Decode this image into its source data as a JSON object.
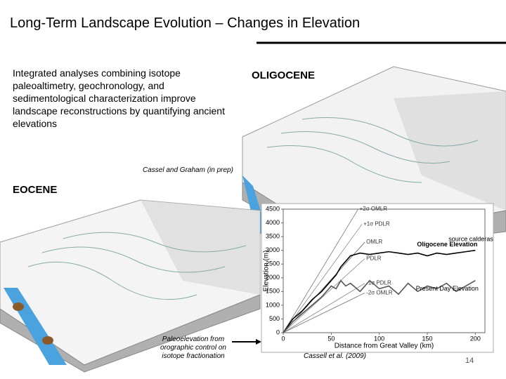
{
  "title": "Long-Term Landscape Evolution – Changes in Elevation",
  "body_text": "Integrated analyses combining isotope paleoaltimetry, geochronology, and sedimentological characterization improve landscape reconstructions by quantifying ancient elevations",
  "caption_top": "Cassel and Graham (in prep)",
  "oligocene_label": "OLIGOCENE",
  "eocene_label": "EOCENE",
  "arrow_note": "Paleoelevation from orographic control on isotope fractionation",
  "caption_chart": "Cassell et al. (2009)",
  "page_number": "14",
  "chart_data": {
    "type": "line",
    "x_label": "Distance from Great Valley (km)",
    "y_label": "Elevation (m)",
    "xlim": [
      0,
      210
    ],
    "ylim": [
      0,
      4500
    ],
    "xticks": [
      0,
      50,
      100,
      150,
      200
    ],
    "yticks": [
      0,
      500,
      1000,
      1500,
      2000,
      2500,
      3000,
      3500,
      4000,
      4500
    ],
    "annotation": "source calderas",
    "series": [
      {
        "name": "+2σ OMLR",
        "color": "#777777",
        "x": [
          0,
          78
        ],
        "values": [
          0,
          4500
        ]
      },
      {
        "name": "+1σ PDLR",
        "color": "#888888",
        "x": [
          0,
          82
        ],
        "values": [
          0,
          3950
        ]
      },
      {
        "name": "OMLR",
        "color": "#666666",
        "x": [
          0,
          85
        ],
        "values": [
          0,
          3300
        ]
      },
      {
        "name": "PDLR",
        "color": "#888888",
        "x": [
          0,
          85
        ],
        "values": [
          0,
          2700
        ]
      },
      {
        "name": "-1σ PDLR",
        "color": "#888888",
        "x": [
          0,
          85
        ],
        "values": [
          0,
          1800
        ]
      },
      {
        "name": "-2σ OMLR",
        "color": "#777777",
        "x": [
          0,
          85
        ],
        "values": [
          0,
          1450
        ]
      },
      {
        "name": "Oligocene Elevation",
        "color": "#000000",
        "x": [
          0,
          10,
          20,
          30,
          40,
          50,
          55,
          60,
          65,
          70,
          80,
          90,
          100,
          110,
          120,
          130,
          140,
          150,
          160,
          170,
          180,
          190,
          200
        ],
        "values": [
          0,
          500,
          800,
          1200,
          1500,
          1900,
          2100,
          2400,
          2600,
          2800,
          2900,
          2850,
          2900,
          2950,
          2900,
          2850,
          2900,
          2800,
          2900,
          2850,
          2900,
          2950,
          3000
        ]
      },
      {
        "name": "Present Day Elevation",
        "color": "#555555",
        "x": [
          0,
          10,
          20,
          30,
          40,
          50,
          55,
          60,
          65,
          70,
          80,
          90,
          100,
          110,
          120,
          130,
          140,
          150,
          160,
          170,
          180,
          190,
          200
        ],
        "values": [
          0,
          400,
          700,
          1000,
          1300,
          1700,
          1600,
          1900,
          1700,
          1800,
          1500,
          1900,
          1600,
          1700,
          1400,
          1800,
          1500,
          1700,
          1600,
          1800,
          1500,
          1700,
          1900
        ]
      }
    ]
  }
}
